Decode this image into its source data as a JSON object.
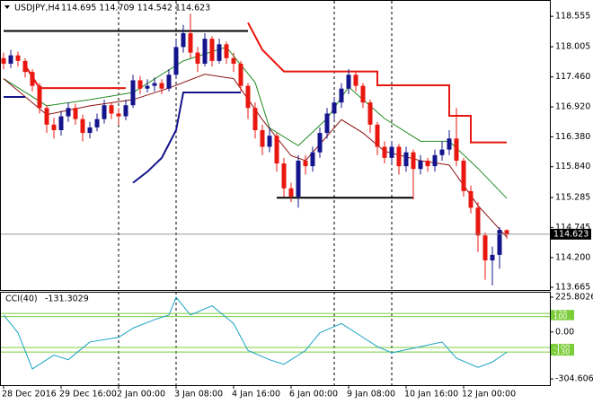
{
  "chart_data": [
    {
      "type": "candlestick",
      "title": "USDJPY,H4",
      "subtitle": "114.695 114.709 114.542 114.623",
      "categories": [
        "28 Dec 2016",
        null,
        null,
        null,
        null,
        null,
        null,
        null,
        "29 Dec 16:00",
        null,
        null,
        null,
        null,
        null,
        null,
        null,
        "2 Jan 00:00",
        null,
        null,
        null,
        null,
        null,
        null,
        null,
        "3 Jan 08:00",
        null,
        null,
        null,
        null,
        null,
        null,
        null,
        "4 Jan 16:00",
        null,
        null,
        null,
        null,
        null,
        null,
        null,
        "6 Jan 00:00",
        null,
        null,
        null,
        null,
        null,
        null,
        null,
        "9 Jan 08:00",
        null,
        null,
        null,
        null,
        null,
        null,
        null,
        "10 Jan 16:00",
        null,
        null,
        null,
        null,
        null,
        null,
        null,
        "12 Jan 00:00",
        null,
        null,
        null,
        null,
        null,
        null
      ],
      "open": [
        117.8,
        117.7,
        117.85,
        117.75,
        117.55,
        117.3,
        116.9,
        116.6,
        116.5,
        116.75,
        116.9,
        116.7,
        116.45,
        116.55,
        116.7,
        116.95,
        116.8,
        116.75,
        116.95,
        117.4,
        117.25,
        117.3,
        117.35,
        117.25,
        117.5,
        118.0,
        118.25,
        117.9,
        117.7,
        118.15,
        117.75,
        118.05,
        117.8,
        117.7,
        117.3,
        116.9,
        116.5,
        116.2,
        116.4,
        115.9,
        115.45,
        115.3,
        115.95,
        115.85,
        116.1,
        116.45,
        116.8,
        117.0,
        117.25,
        117.5,
        117.3,
        117.0,
        116.6,
        116.2,
        116.0,
        116.2,
        115.85,
        116.1,
        115.8,
        115.95,
        115.85,
        116.05,
        116.15,
        116.35,
        115.95,
        115.4,
        115.1,
        114.6,
        114.15,
        114.25,
        114.695
      ],
      "high": [
        117.9,
        117.95,
        117.92,
        117.8,
        117.6,
        117.35,
        116.95,
        116.72,
        116.85,
        117.0,
        116.98,
        116.78,
        116.65,
        116.8,
        117.05,
        117.0,
        116.9,
        117.05,
        117.5,
        117.48,
        117.42,
        117.45,
        117.42,
        117.6,
        118.15,
        118.4,
        118.6,
        118.0,
        118.25,
        118.2,
        118.15,
        118.1,
        117.9,
        117.75,
        117.35,
        117.0,
        116.6,
        116.55,
        116.45,
        116.0,
        115.55,
        116.05,
        116.05,
        116.2,
        116.55,
        116.9,
        117.1,
        117.35,
        117.6,
        117.55,
        117.35,
        117.05,
        116.65,
        116.3,
        116.3,
        116.25,
        116.2,
        116.15,
        116.05,
        116.0,
        116.15,
        116.3,
        116.5,
        116.9,
        116.0,
        115.5,
        115.2,
        114.65,
        114.4,
        114.75,
        114.709
      ],
      "low": [
        117.6,
        117.62,
        117.65,
        117.45,
        117.2,
        116.8,
        116.45,
        116.35,
        116.4,
        116.65,
        116.6,
        116.3,
        116.35,
        116.48,
        116.62,
        116.7,
        116.6,
        116.68,
        116.9,
        117.15,
        117.18,
        117.2,
        117.15,
        117.2,
        117.45,
        117.9,
        117.8,
        117.55,
        117.65,
        117.65,
        117.7,
        117.7,
        117.55,
        117.2,
        116.7,
        116.35,
        116.05,
        116.1,
        115.75,
        115.3,
        115.2,
        115.1,
        115.7,
        115.75,
        116.0,
        116.35,
        116.7,
        116.9,
        117.15,
        117.2,
        116.9,
        116.45,
        116.05,
        115.9,
        115.9,
        115.7,
        115.75,
        115.25,
        115.7,
        115.75,
        115.75,
        115.95,
        116.05,
        115.85,
        115.3,
        115.0,
        114.3,
        113.8,
        113.7,
        114.0,
        114.542
      ],
      "close": [
        117.7,
        117.85,
        117.75,
        117.55,
        117.3,
        116.9,
        116.6,
        116.5,
        116.75,
        116.9,
        116.7,
        116.45,
        116.55,
        116.7,
        116.95,
        116.8,
        116.75,
        116.95,
        117.4,
        117.25,
        117.3,
        117.35,
        117.25,
        117.5,
        118.0,
        118.25,
        117.9,
        117.7,
        118.15,
        117.75,
        118.05,
        117.8,
        117.7,
        117.3,
        116.9,
        116.5,
        116.2,
        116.4,
        115.9,
        115.45,
        115.3,
        115.95,
        115.85,
        116.1,
        116.45,
        116.8,
        117.0,
        117.25,
        117.5,
        117.3,
        117.0,
        116.6,
        116.2,
        116.0,
        116.2,
        115.85,
        116.1,
        115.8,
        115.95,
        115.85,
        116.05,
        116.15,
        116.35,
        115.95,
        115.4,
        115.1,
        114.6,
        114.15,
        114.25,
        114.7,
        114.623
      ],
      "up_color": "#14148c",
      "down_color": "#e8170f",
      "ylim": [
        113.616,
        118.833
      ],
      "yticks": [
        118.555,
        118.005,
        {
          "value": 117.46,
          "label": "117.460"
        },
        {
          "value": 116.92,
          "label": "116.920"
        },
        {
          "value": 116.38,
          "label": "116.380"
        },
        {
          "value": 115.84,
          "label": "115.840"
        },
        115.285,
        114.745,
        {
          "value": 114.2,
          "label": "114.200"
        },
        113.665
      ],
      "current_price": 114.623,
      "lines": [
        {
          "color": "#228b22",
          "x": [
            0,
            6,
            12,
            18,
            25,
            31,
            35,
            37,
            41,
            45,
            48,
            53,
            58,
            62,
            66,
            70
          ],
          "values": [
            117.43,
            116.94,
            117.05,
            117.18,
            117.75,
            118.0,
            117.36,
            116.54,
            116.22,
            116.71,
            117.28,
            116.71,
            116.3,
            116.3,
            115.81,
            115.27
          ]
        },
        {
          "color": "#8b1010",
          "x": [
            0,
            6,
            12,
            18,
            23,
            28,
            32,
            36,
            40,
            42,
            47,
            50,
            53,
            58,
            62,
            66,
            70
          ],
          "values": [
            117.43,
            116.78,
            116.94,
            117.05,
            117.26,
            117.51,
            117.43,
            116.69,
            116.04,
            115.95,
            116.69,
            116.45,
            116.12,
            115.95,
            115.87,
            115.14,
            114.57
          ]
        },
        {
          "color": "#e8170f",
          "width": 2,
          "x": [
            3,
            5,
            17,
            17,
            34,
            36,
            39,
            52,
            52,
            62,
            62,
            65,
            65,
            70
          ],
          "values": [
            117.67,
            117.26,
            117.26,
            null,
            118.44,
            117.95,
            117.56,
            117.56,
            117.31,
            117.31,
            116.76,
            116.76,
            116.28,
            116.28
          ]
        },
        {
          "color": "#14148c",
          "width": 2,
          "x": [
            0,
            3,
            3,
            18,
            20,
            22,
            24,
            25,
            33
          ],
          "values": [
            117.1,
            117.1,
            null,
            115.55,
            115.75,
            116.0,
            116.5,
            117.18,
            117.18
          ]
        },
        {
          "color": "#000000",
          "width": 2,
          "x": [
            0,
            34,
            34,
            38,
            57
          ],
          "values": [
            118.29,
            118.29,
            null,
            115.28,
            115.28
          ]
        }
      ]
    },
    {
      "type": "line",
      "title": "CCI(40)",
      "subtitle": -131.3029,
      "ylim": [
        -345,
        255
      ],
      "yticks": [
        225.8026,
        {
          "value": 0,
          "label": "0.00"
        },
        -304.6065
      ],
      "levels": [
        120,
        100,
        -100,
        -130
      ],
      "level_color": "#7ccd3a",
      "color": "#1aa3c4",
      "x": [
        0,
        2,
        4,
        7,
        9,
        12,
        16,
        18,
        21,
        23,
        24,
        26,
        29,
        32,
        34,
        37,
        39,
        42,
        44,
        47,
        49,
        52,
        54,
        58,
        61,
        63,
        66,
        68,
        70
      ],
      "values": [
        110,
        -5,
        -240,
        -150,
        -180,
        -65,
        -35,
        25,
        80,
        110,
        225,
        110,
        170,
        55,
        -120,
        -180,
        -210,
        -120,
        -5,
        55,
        -5,
        -95,
        -135,
        -95,
        -65,
        -170,
        -230,
        -195,
        -131
      ]
    }
  ]
}
